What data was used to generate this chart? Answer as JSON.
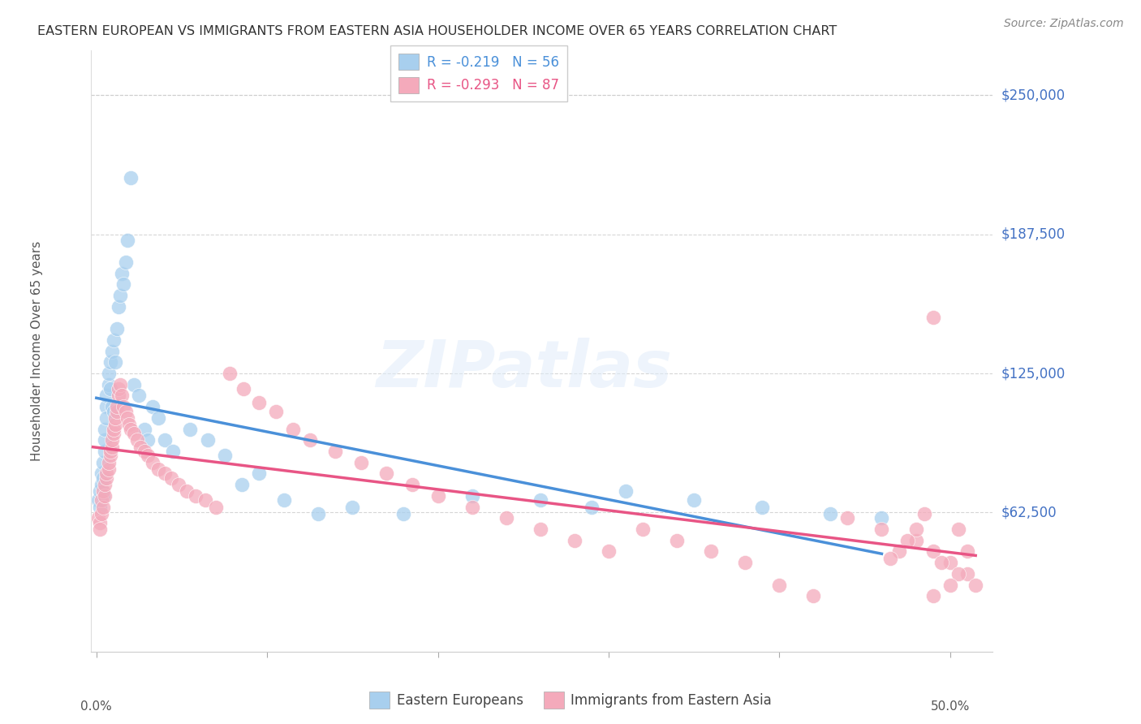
{
  "title": "EASTERN EUROPEAN VS IMMIGRANTS FROM EASTERN ASIA HOUSEHOLDER INCOME OVER 65 YEARS CORRELATION CHART",
  "source": "Source: ZipAtlas.com",
  "ylabel": "Householder Income Over 65 years",
  "ytick_values": [
    62500,
    125000,
    187500,
    250000
  ],
  "ytick_labels": [
    "$62,500",
    "$125,000",
    "$187,500",
    "$250,000"
  ],
  "ymin": 0,
  "ymax": 270000,
  "xmin": -0.003,
  "xmax": 0.525,
  "watermark_text": "ZIPatlas",
  "legend1_r": "-0.219",
  "legend1_n": "56",
  "legend2_r": "-0.293",
  "legend2_n": "87",
  "blue_color": "#A8CFEE",
  "pink_color": "#F4AABB",
  "blue_line_color": "#4A90D9",
  "pink_line_color": "#E85585",
  "grid_color": "#CCCCCC",
  "ytick_color": "#4472C4",
  "blue_x": [
    0.001,
    0.002,
    0.002,
    0.003,
    0.003,
    0.004,
    0.004,
    0.004,
    0.005,
    0.005,
    0.005,
    0.006,
    0.006,
    0.006,
    0.007,
    0.007,
    0.008,
    0.008,
    0.009,
    0.009,
    0.01,
    0.01,
    0.011,
    0.012,
    0.013,
    0.014,
    0.015,
    0.016,
    0.017,
    0.018,
    0.02,
    0.022,
    0.025,
    0.028,
    0.03,
    0.033,
    0.036,
    0.04,
    0.045,
    0.055,
    0.065,
    0.075,
    0.085,
    0.095,
    0.11,
    0.13,
    0.15,
    0.18,
    0.22,
    0.26,
    0.29,
    0.31,
    0.35,
    0.39,
    0.43,
    0.46
  ],
  "blue_y": [
    68000,
    72000,
    65000,
    75000,
    80000,
    85000,
    78000,
    70000,
    90000,
    95000,
    100000,
    110000,
    105000,
    115000,
    120000,
    125000,
    130000,
    118000,
    135000,
    110000,
    140000,
    108000,
    130000,
    145000,
    155000,
    160000,
    170000,
    165000,
    175000,
    185000,
    213000,
    120000,
    115000,
    100000,
    95000,
    110000,
    105000,
    95000,
    90000,
    100000,
    95000,
    88000,
    75000,
    80000,
    68000,
    62000,
    65000,
    62000,
    70000,
    68000,
    65000,
    72000,
    68000,
    65000,
    62000,
    60000
  ],
  "pink_x": [
    0.001,
    0.002,
    0.002,
    0.003,
    0.003,
    0.004,
    0.004,
    0.005,
    0.005,
    0.006,
    0.006,
    0.007,
    0.007,
    0.008,
    0.008,
    0.009,
    0.009,
    0.01,
    0.01,
    0.011,
    0.011,
    0.012,
    0.012,
    0.013,
    0.013,
    0.014,
    0.015,
    0.016,
    0.017,
    0.018,
    0.019,
    0.02,
    0.022,
    0.024,
    0.026,
    0.028,
    0.03,
    0.033,
    0.036,
    0.04,
    0.044,
    0.048,
    0.053,
    0.058,
    0.064,
    0.07,
    0.078,
    0.086,
    0.095,
    0.105,
    0.115,
    0.125,
    0.14,
    0.155,
    0.17,
    0.185,
    0.2,
    0.22,
    0.24,
    0.26,
    0.28,
    0.3,
    0.32,
    0.34,
    0.36,
    0.38,
    0.4,
    0.42,
    0.44,
    0.46,
    0.48,
    0.49,
    0.5,
    0.51,
    0.515,
    0.49,
    0.505,
    0.51,
    0.505,
    0.5,
    0.49,
    0.495,
    0.485,
    0.48,
    0.475,
    0.47,
    0.465
  ],
  "pink_y": [
    60000,
    58000,
    55000,
    62000,
    68000,
    65000,
    72000,
    70000,
    75000,
    78000,
    80000,
    82000,
    85000,
    88000,
    90000,
    92000,
    95000,
    98000,
    100000,
    102000,
    105000,
    108000,
    110000,
    115000,
    118000,
    120000,
    115000,
    110000,
    108000,
    105000,
    102000,
    100000,
    98000,
    95000,
    92000,
    90000,
    88000,
    85000,
    82000,
    80000,
    78000,
    75000,
    72000,
    70000,
    68000,
    65000,
    125000,
    118000,
    112000,
    108000,
    100000,
    95000,
    90000,
    85000,
    80000,
    75000,
    70000,
    65000,
    60000,
    55000,
    50000,
    45000,
    55000,
    50000,
    45000,
    40000,
    30000,
    25000,
    60000,
    55000,
    50000,
    45000,
    40000,
    35000,
    30000,
    150000,
    55000,
    45000,
    35000,
    30000,
    25000,
    40000,
    62000,
    55000,
    50000,
    45000,
    42000
  ]
}
